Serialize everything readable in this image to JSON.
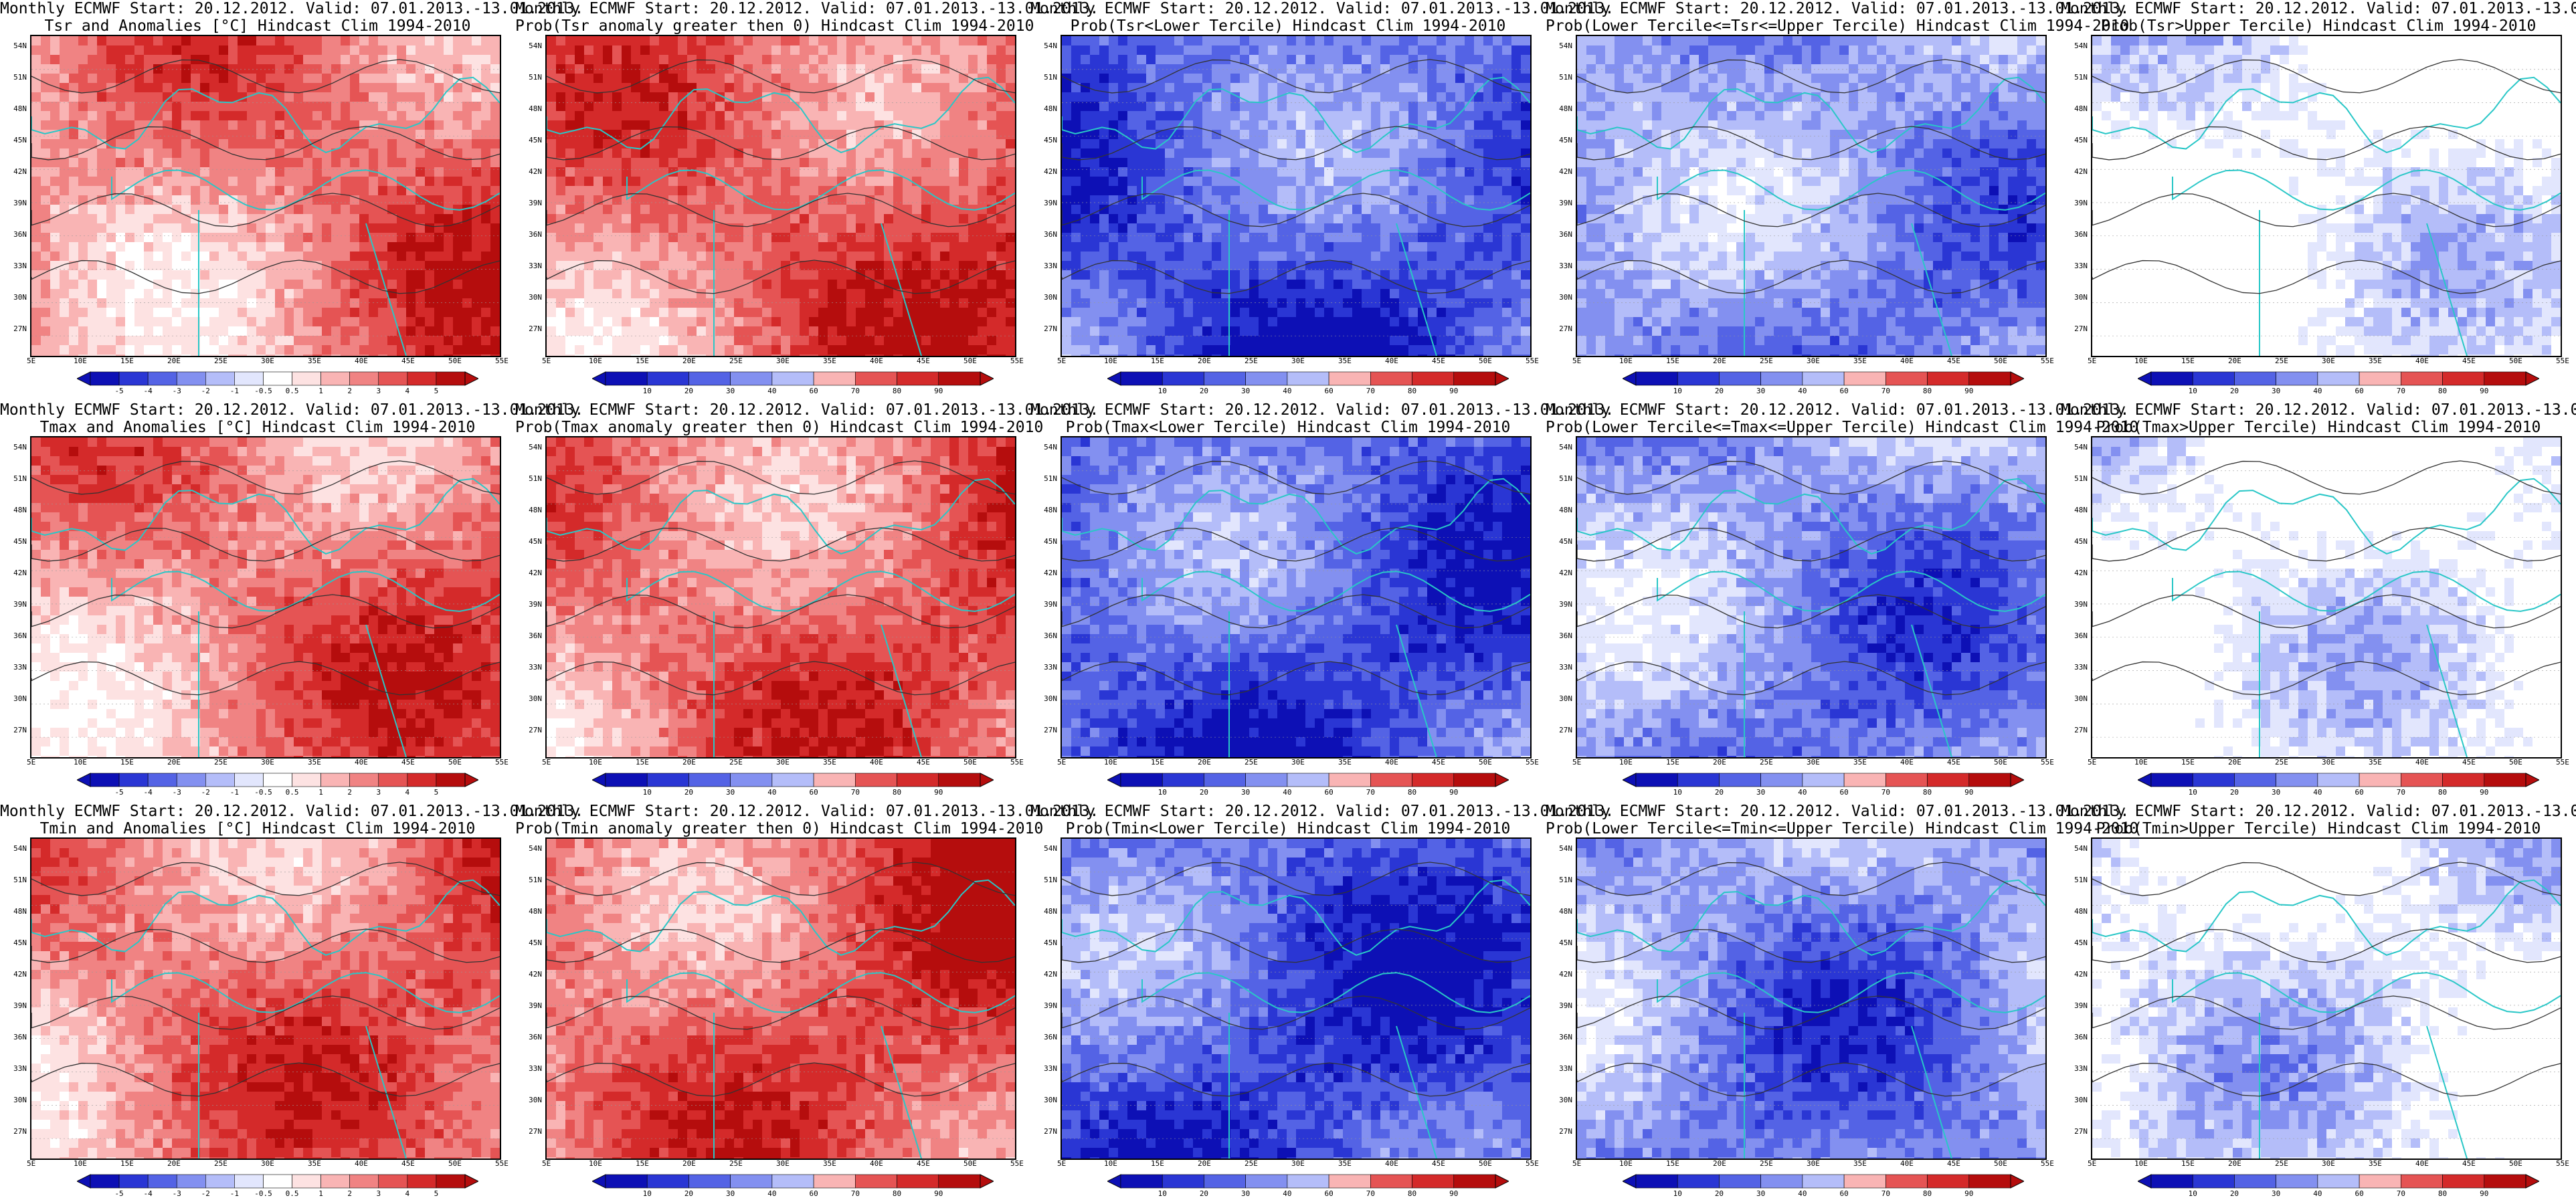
{
  "header": "Monthly ECMWF Start: 20.12.2012. Valid: 07.01.2013.-13.01.2013.",
  "lat_labels": [
    "54N",
    "51N",
    "48N",
    "45N",
    "42N",
    "39N",
    "36N",
    "33N",
    "30N",
    "27N"
  ],
  "lon_labels": [
    "5E",
    "10E",
    "15E",
    "20E",
    "25E",
    "30E",
    "35E",
    "40E",
    "45E",
    "50E",
    "55E"
  ],
  "anomaly_levels": [
    "-5",
    "-4",
    "-3",
    "-2",
    "-1",
    "-0.5",
    "0.5",
    "1",
    "2",
    "3",
    "4",
    "5"
  ],
  "prob_levels": [
    "10",
    "20",
    "30",
    "40",
    "60",
    "70",
    "80",
    "90"
  ],
  "colors": {
    "warm": [
      "#fde2e2",
      "#f9b4b4",
      "#f08383",
      "#e55454",
      "#d42a2a",
      "#b50d0d"
    ],
    "cool": [
      "#e2e6fd",
      "#b4bdf9",
      "#8390f0",
      "#5463e5",
      "#2a36d4",
      "#0d10b5"
    ],
    "coast": "#29c7c7",
    "contour": "#333333"
  },
  "rows": [
    {
      "var": "Tsr",
      "panels": [
        {
          "line2": "Tsr and Anomalies [°C] Hindcast Clim 1994-2010",
          "scheme": "warm",
          "intensity": 0.55,
          "bar": "anomaly"
        },
        {
          "line2": "Prob(Tsr anomaly greater then 0) Hindcast Clim 1994-2010",
          "scheme": "warm",
          "intensity": 0.7,
          "bar": "prob"
        },
        {
          "line2": "Prob(Tsr<Lower Tercile) Hindcast Clim 1994-2010",
          "scheme": "cool",
          "intensity": 0.85,
          "bar": "prob"
        },
        {
          "line2": "Prob(Lower Tercile<=Tsr<=Upper Tercile) Hindcast Clim 1994-2010",
          "scheme": "cool",
          "intensity": 0.5,
          "bar": "prob"
        },
        {
          "line2": "Prob(Tsr>Upper Tercile) Hindcast Clim 1994-2010",
          "scheme": "mixed",
          "intensity": 0.3,
          "bar": "prob"
        }
      ]
    },
    {
      "var": "Tmax",
      "panels": [
        {
          "line2": "Tmax and Anomalies [°C] Hindcast Clim 1994-2010",
          "scheme": "warm",
          "intensity": 0.55,
          "bar": "anomaly"
        },
        {
          "line2": "Prob(Tmax anomaly greater then 0) Hindcast Clim 1994-2010",
          "scheme": "warm",
          "intensity": 0.65,
          "bar": "prob"
        },
        {
          "line2": "Prob(Tmax<Lower Tercile) Hindcast Clim 1994-2010",
          "scheme": "cool",
          "intensity": 0.85,
          "bar": "prob"
        },
        {
          "line2": "Prob(Lower Tercile<=Tmax<=Upper Tercile) Hindcast Clim 1994-2010",
          "scheme": "cool",
          "intensity": 0.5,
          "bar": "prob"
        },
        {
          "line2": "Prob(Tmax>Upper Tercile) Hindcast Clim 1994-2010",
          "scheme": "mixed",
          "intensity": 0.3,
          "bar": "prob"
        }
      ]
    },
    {
      "var": "Tmin",
      "panels": [
        {
          "line2": "Tmin and Anomalies [°C] Hindcast Clim 1994-2010",
          "scheme": "warm",
          "intensity": 0.6,
          "bar": "anomaly"
        },
        {
          "line2": "Prob(Tmin anomaly greater then 0) Hindcast Clim 1994-2010",
          "scheme": "warm",
          "intensity": 0.75,
          "bar": "prob"
        },
        {
          "line2": "Prob(Tmin<Lower Tercile) Hindcast Clim 1994-2010",
          "scheme": "cool",
          "intensity": 0.85,
          "bar": "prob"
        },
        {
          "line2": "Prob(Lower Tercile<=Tmin<=Upper Tercile) Hindcast Clim 1994-2010",
          "scheme": "cool",
          "intensity": 0.5,
          "bar": "prob"
        },
        {
          "line2": "Prob(Tmin>Upper Tercile) Hindcast Clim 1994-2010",
          "scheme": "mixed",
          "intensity": 0.45,
          "bar": "prob"
        }
      ]
    }
  ]
}
